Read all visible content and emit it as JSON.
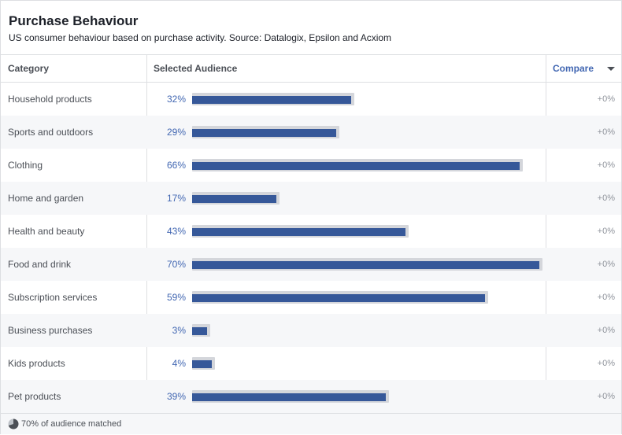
{
  "header": {
    "title": "Purchase Behaviour",
    "subtitle": "US consumer behaviour based on purchase activity. Source: Datalogix, Epsilon and Acxiom"
  },
  "columns": {
    "category": "Category",
    "selected": "Selected Audience",
    "compare": "Compare"
  },
  "rows": [
    {
      "category": "Household products",
      "percent_label": "32%",
      "value": 32,
      "compare": "+0%"
    },
    {
      "category": "Sports and outdoors",
      "percent_label": "29%",
      "value": 29,
      "compare": "+0%"
    },
    {
      "category": "Clothing",
      "percent_label": "66%",
      "value": 66,
      "compare": "+0%"
    },
    {
      "category": "Home and garden",
      "percent_label": "17%",
      "value": 17,
      "compare": "+0%"
    },
    {
      "category": "Health and beauty",
      "percent_label": "43%",
      "value": 43,
      "compare": "+0%"
    },
    {
      "category": "Food and drink",
      "percent_label": "70%",
      "value": 70,
      "compare": "+0%"
    },
    {
      "category": "Subscription services",
      "percent_label": "59%",
      "value": 59,
      "compare": "+0%"
    },
    {
      "category": "Business purchases",
      "percent_label": "3%",
      "value": 3,
      "compare": "+0%"
    },
    {
      "category": "Kids products",
      "percent_label": "4%",
      "value": 4,
      "compare": "+0%"
    },
    {
      "category": "Pet products",
      "percent_label": "39%",
      "value": 39,
      "compare": "+0%"
    }
  ],
  "footer": {
    "text": "70% of audience matched",
    "icon": "pie-chart-icon",
    "matched_fraction": 0.7
  },
  "colors": {
    "bar": "#365899",
    "bar_background": "#d4d6db",
    "link": "#4267b2"
  }
}
